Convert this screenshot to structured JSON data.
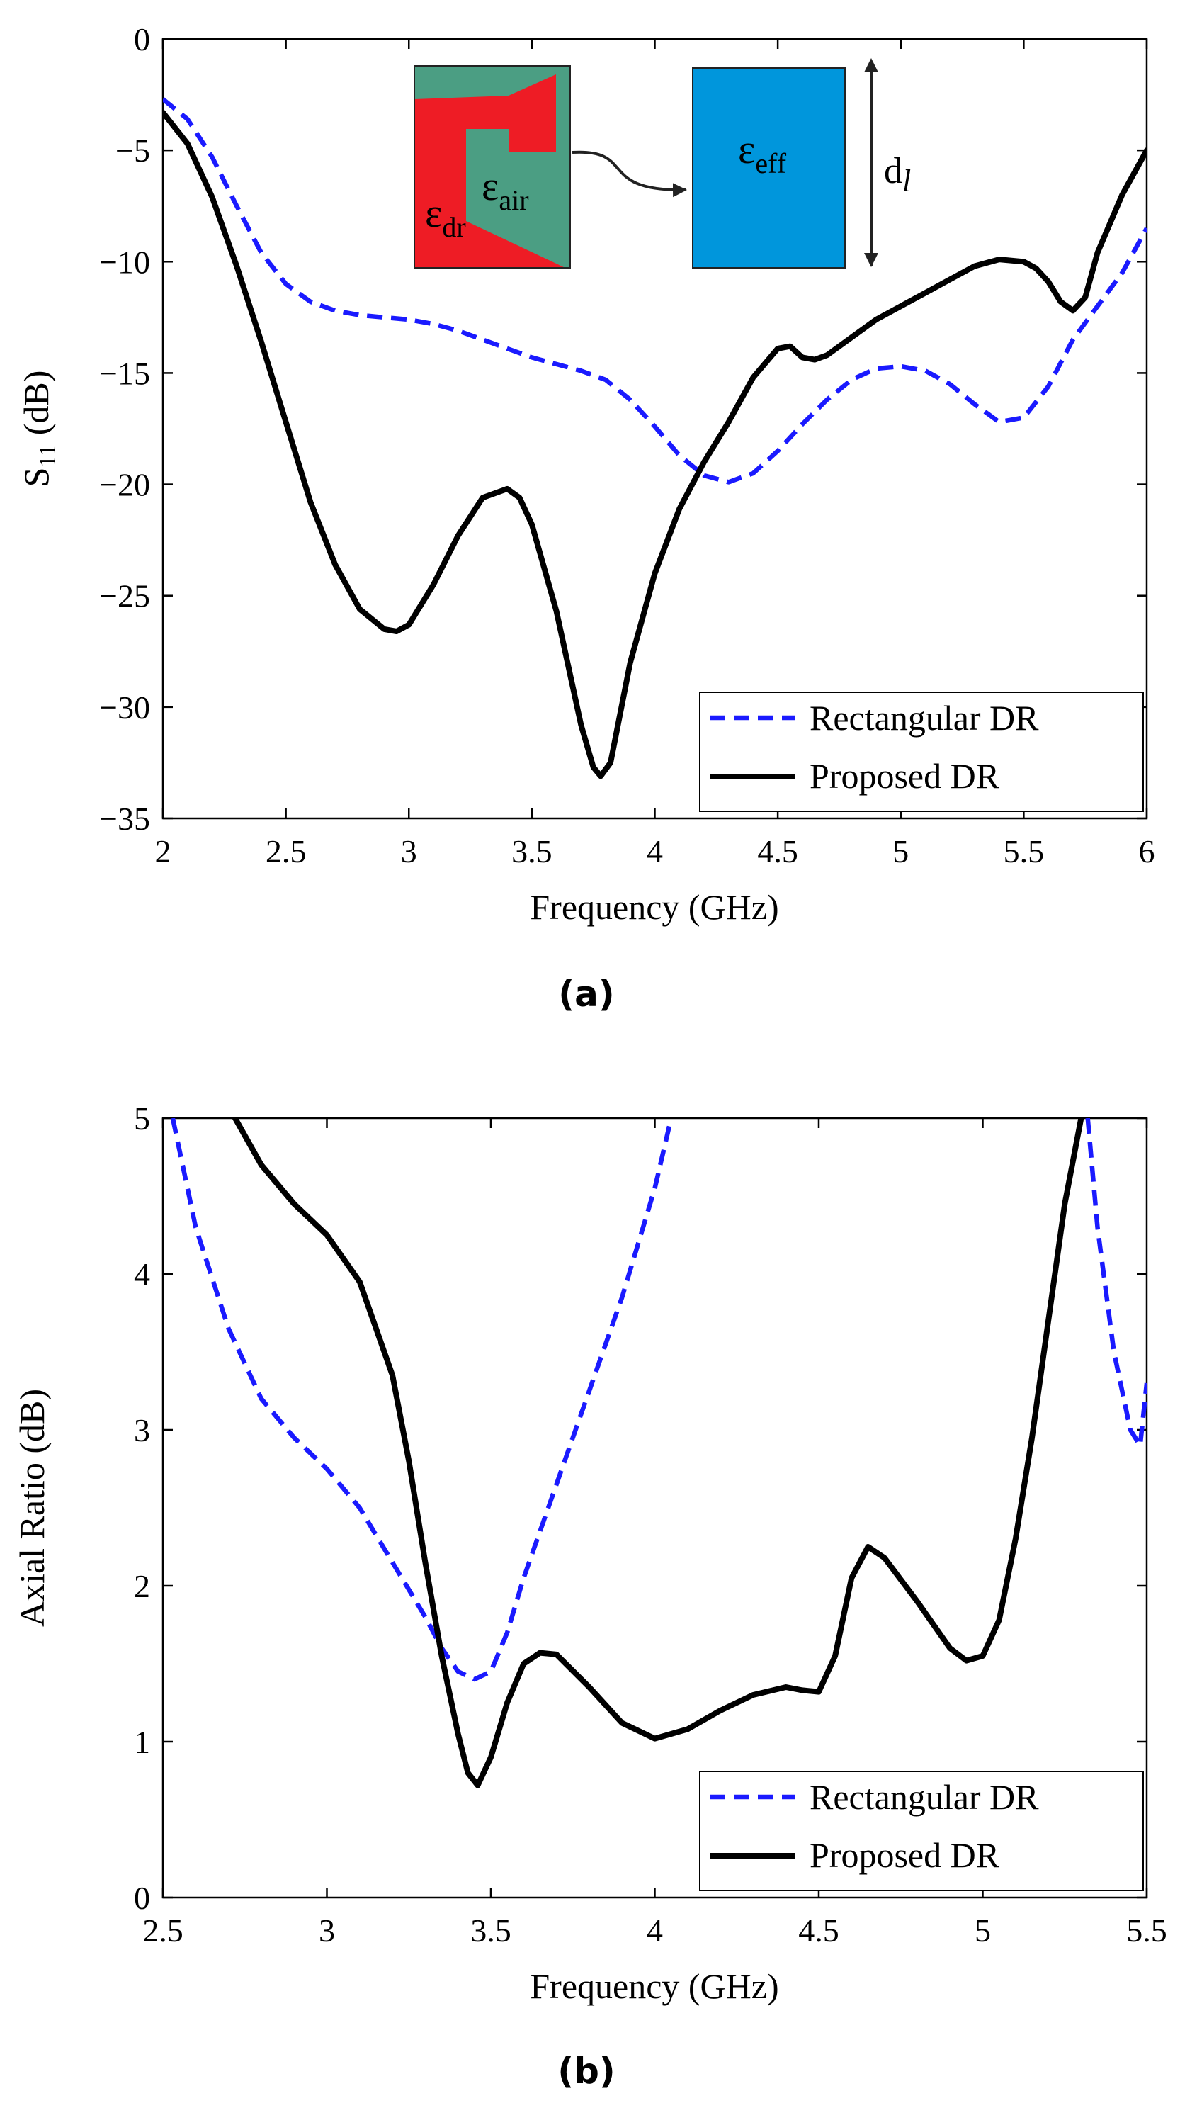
{
  "colors": {
    "rect": "#1a1aff",
    "proposed": "#000000",
    "dr_red": "#ee1c25",
    "air_green": "#4b9e83",
    "eff_blue": "#0096dc",
    "arrow": "#222222"
  },
  "chart_data": [
    {
      "type": "line",
      "panel": "(a)",
      "xlabel": "Frequency (GHz)",
      "ylabel": {
        "base": "S",
        "sub": "11",
        "rest": " (dB)"
      },
      "xlim": [
        2,
        6
      ],
      "ylim": [
        -35,
        0
      ],
      "xticks": [
        2,
        2.5,
        3,
        3.5,
        4,
        4.5,
        5,
        5.5,
        6
      ],
      "yticks": [
        0,
        -5,
        -10,
        -15,
        -20,
        -25,
        -30,
        -35
      ],
      "xtick_labels": [
        "2",
        "2.5",
        "3",
        "3.5",
        "4",
        "4.5",
        "5",
        "5.5",
        "6"
      ],
      "ytick_labels": [
        "0",
        "−5",
        "−10",
        "−15",
        "−20",
        "−25",
        "−30",
        "−35"
      ],
      "legend": [
        "Rectangular DR",
        "Proposed DR"
      ],
      "legend_position": "bottom-right",
      "series": [
        {
          "name": "Rectangular DR",
          "style": "dashed",
          "x": [
            2.0,
            2.1,
            2.2,
            2.3,
            2.4,
            2.5,
            2.6,
            2.7,
            2.8,
            2.9,
            3.0,
            3.1,
            3.2,
            3.3,
            3.4,
            3.5,
            3.6,
            3.7,
            3.8,
            3.9,
            4.0,
            4.1,
            4.2,
            4.3,
            4.4,
            4.5,
            4.6,
            4.7,
            4.8,
            4.9,
            5.0,
            5.1,
            5.2,
            5.3,
            5.4,
            5.5,
            5.6,
            5.7,
            5.8,
            5.9,
            6.0
          ],
          "y": [
            -2.7,
            -3.6,
            -5.3,
            -7.5,
            -9.6,
            -11.0,
            -11.8,
            -12.2,
            -12.4,
            -12.5,
            -12.6,
            -12.8,
            -13.1,
            -13.5,
            -13.9,
            -14.3,
            -14.6,
            -14.9,
            -15.3,
            -16.2,
            -17.4,
            -18.7,
            -19.6,
            -19.9,
            -19.5,
            -18.5,
            -17.3,
            -16.2,
            -15.3,
            -14.8,
            -14.7,
            -14.9,
            -15.5,
            -16.4,
            -17.2,
            -17.0,
            -15.6,
            -13.5,
            -12.0,
            -10.5,
            -8.5
          ]
        },
        {
          "name": "Proposed DR",
          "style": "solid",
          "x": [
            2.0,
            2.1,
            2.2,
            2.3,
            2.4,
            2.5,
            2.6,
            2.7,
            2.8,
            2.9,
            2.95,
            3.0,
            3.1,
            3.2,
            3.3,
            3.4,
            3.45,
            3.5,
            3.6,
            3.7,
            3.75,
            3.78,
            3.82,
            3.9,
            4.0,
            4.1,
            4.2,
            4.3,
            4.4,
            4.5,
            4.55,
            4.6,
            4.65,
            4.7,
            4.8,
            4.9,
            5.0,
            5.1,
            5.2,
            5.3,
            5.4,
            5.5,
            5.55,
            5.6,
            5.65,
            5.7,
            5.75,
            5.8,
            5.9,
            6.0
          ],
          "y": [
            -3.3,
            -4.7,
            -7.1,
            -10.2,
            -13.6,
            -17.2,
            -20.8,
            -23.6,
            -25.6,
            -26.5,
            -26.6,
            -26.3,
            -24.5,
            -22.3,
            -20.6,
            -20.2,
            -20.6,
            -21.8,
            -25.7,
            -30.8,
            -32.7,
            -33.1,
            -32.5,
            -28.0,
            -24.0,
            -21.1,
            -19.0,
            -17.2,
            -15.2,
            -13.9,
            -13.8,
            -14.3,
            -14.4,
            -14.2,
            -13.4,
            -12.6,
            -12.0,
            -11.4,
            -10.8,
            -10.2,
            -9.9,
            -10.0,
            -10.3,
            -10.9,
            -11.8,
            -12.2,
            -11.6,
            -9.6,
            -7.0,
            -5.0
          ]
        }
      ]
    },
    {
      "type": "line",
      "panel": "(b)",
      "xlabel": "Frequency (GHz)",
      "ylabel": {
        "base": "Axial Ratio (dB)",
        "sub": "",
        "rest": ""
      },
      "xlim": [
        2.5,
        5.5
      ],
      "ylim": [
        0,
        5
      ],
      "xticks": [
        2.5,
        3,
        3.5,
        4,
        4.5,
        5,
        5.5
      ],
      "yticks": [
        0,
        1,
        2,
        3,
        4,
        5
      ],
      "xtick_labels": [
        "2.5",
        "3",
        "3.5",
        "4",
        "4.5",
        "5",
        "5.5"
      ],
      "ytick_labels": [
        "0",
        "1",
        "2",
        "3",
        "4",
        "5"
      ],
      "legend": [
        "Rectangular DR",
        "Proposed DR"
      ],
      "legend_position": "bottom-right",
      "series": [
        {
          "name": "Rectangular DR",
          "style": "dashed",
          "x": [
            2.53,
            2.6,
            2.7,
            2.8,
            2.9,
            3.0,
            3.1,
            3.2,
            3.3,
            3.35,
            3.4,
            3.45,
            3.5,
            3.55,
            3.6,
            3.7,
            3.8,
            3.9,
            4.0,
            4.05
          ],
          "y": [
            5.0,
            4.3,
            3.65,
            3.2,
            2.95,
            2.75,
            2.5,
            2.15,
            1.8,
            1.6,
            1.45,
            1.4,
            1.45,
            1.7,
            2.05,
            2.65,
            3.25,
            3.85,
            4.55,
            5.0
          ],
          "x2": [
            5.32,
            5.35,
            5.4,
            5.45,
            5.48,
            5.5
          ],
          "y2": [
            5.0,
            4.3,
            3.5,
            3.0,
            2.9,
            3.3
          ]
        },
        {
          "name": "Proposed DR",
          "style": "solid",
          "x": [
            2.72,
            2.8,
            2.9,
            3.0,
            3.1,
            3.2,
            3.25,
            3.3,
            3.35,
            3.4,
            3.43,
            3.46,
            3.5,
            3.55,
            3.6,
            3.65,
            3.7,
            3.8,
            3.9,
            4.0,
            4.1,
            4.2,
            4.3,
            4.4,
            4.45,
            4.5,
            4.55,
            4.6,
            4.65,
            4.7,
            4.8,
            4.9,
            4.95,
            5.0,
            5.05,
            5.1,
            5.15,
            5.2,
            5.25,
            5.3
          ],
          "y": [
            5.0,
            4.7,
            4.45,
            4.25,
            3.95,
            3.35,
            2.8,
            2.15,
            1.55,
            1.05,
            0.8,
            0.72,
            0.9,
            1.25,
            1.5,
            1.57,
            1.56,
            1.35,
            1.12,
            1.02,
            1.08,
            1.2,
            1.3,
            1.35,
            1.33,
            1.32,
            1.55,
            2.05,
            2.25,
            2.18,
            1.9,
            1.6,
            1.52,
            1.55,
            1.78,
            2.3,
            2.95,
            3.7,
            4.45,
            5.0
          ]
        }
      ]
    }
  ],
  "inset": {
    "label_dr": {
      "base": "ε",
      "sub": "dr"
    },
    "label_air": {
      "base": "ε",
      "sub": "air"
    },
    "label_eff": {
      "base": "ε",
      "sub": "eff"
    },
    "label_dl": {
      "base": "d",
      "sub": "l"
    }
  },
  "captions": {
    "a": "(a)",
    "b": "(b)"
  }
}
